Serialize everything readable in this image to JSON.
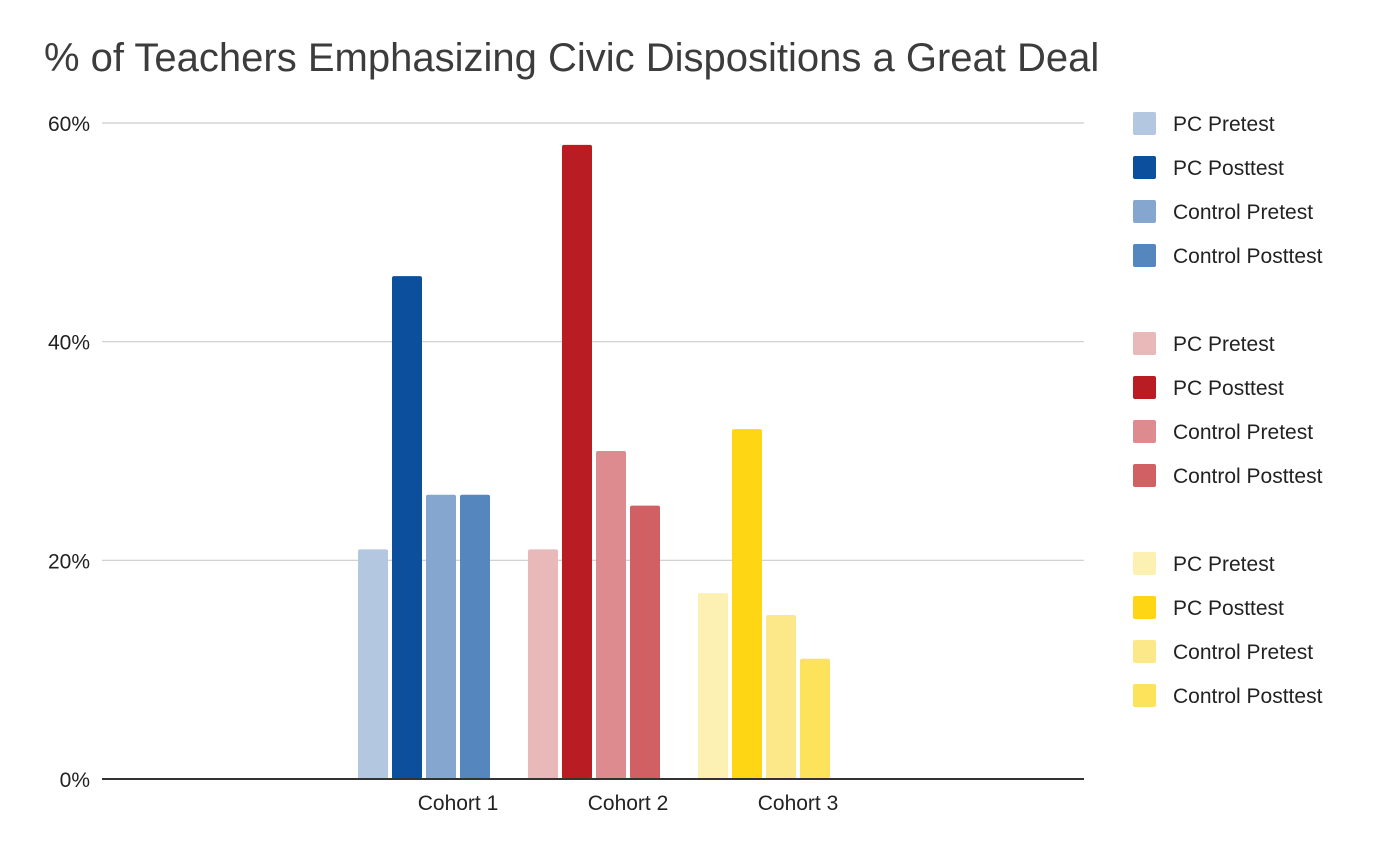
{
  "chart_data": {
    "type": "bar",
    "title": "% of Teachers Emphasizing Civic Dispositions a Great Deal",
    "xlabel": "",
    "ylabel": "",
    "ylim": [
      0,
      60
    ],
    "yticks": [
      "0%",
      "20%",
      "40%",
      "60%"
    ],
    "ytick_values": [
      0,
      20,
      40,
      60
    ],
    "grid": true,
    "legend_position": "right",
    "categories": [
      "Cohort 1",
      "Cohort 2",
      "Cohort 3"
    ],
    "groups": [
      {
        "category": "Cohort 1",
        "series": [
          {
            "name": "PC Pretest",
            "value": 21,
            "color": "#b3c7e1"
          },
          {
            "name": "PC Posttest",
            "value": 46,
            "color": "#0b4f9d"
          },
          {
            "name": "Control Pretest",
            "value": 26,
            "color": "#84a6cf"
          },
          {
            "name": "Control Posttest",
            "value": 26,
            "color": "#5586be"
          }
        ]
      },
      {
        "category": "Cohort 2",
        "series": [
          {
            "name": "PC Pretest",
            "value": 21,
            "color": "#e9b9b9"
          },
          {
            "name": "PC Posttest",
            "value": 58,
            "color": "#b91c22"
          },
          {
            "name": "Control Pretest",
            "value": 30,
            "color": "#dd8b8e"
          },
          {
            "name": "Control Posttest",
            "value": 25,
            "color": "#d06063"
          }
        ]
      },
      {
        "category": "Cohort 3",
        "series": [
          {
            "name": "PC Pretest",
            "value": 17,
            "color": "#fdf0b3"
          },
          {
            "name": "PC Posttest",
            "value": 32,
            "color": "#ffd614"
          },
          {
            "name": "Control Pretest",
            "value": 15,
            "color": "#fde889"
          },
          {
            "name": "Control Posttest",
            "value": 11,
            "color": "#fde25c"
          }
        ]
      }
    ]
  }
}
